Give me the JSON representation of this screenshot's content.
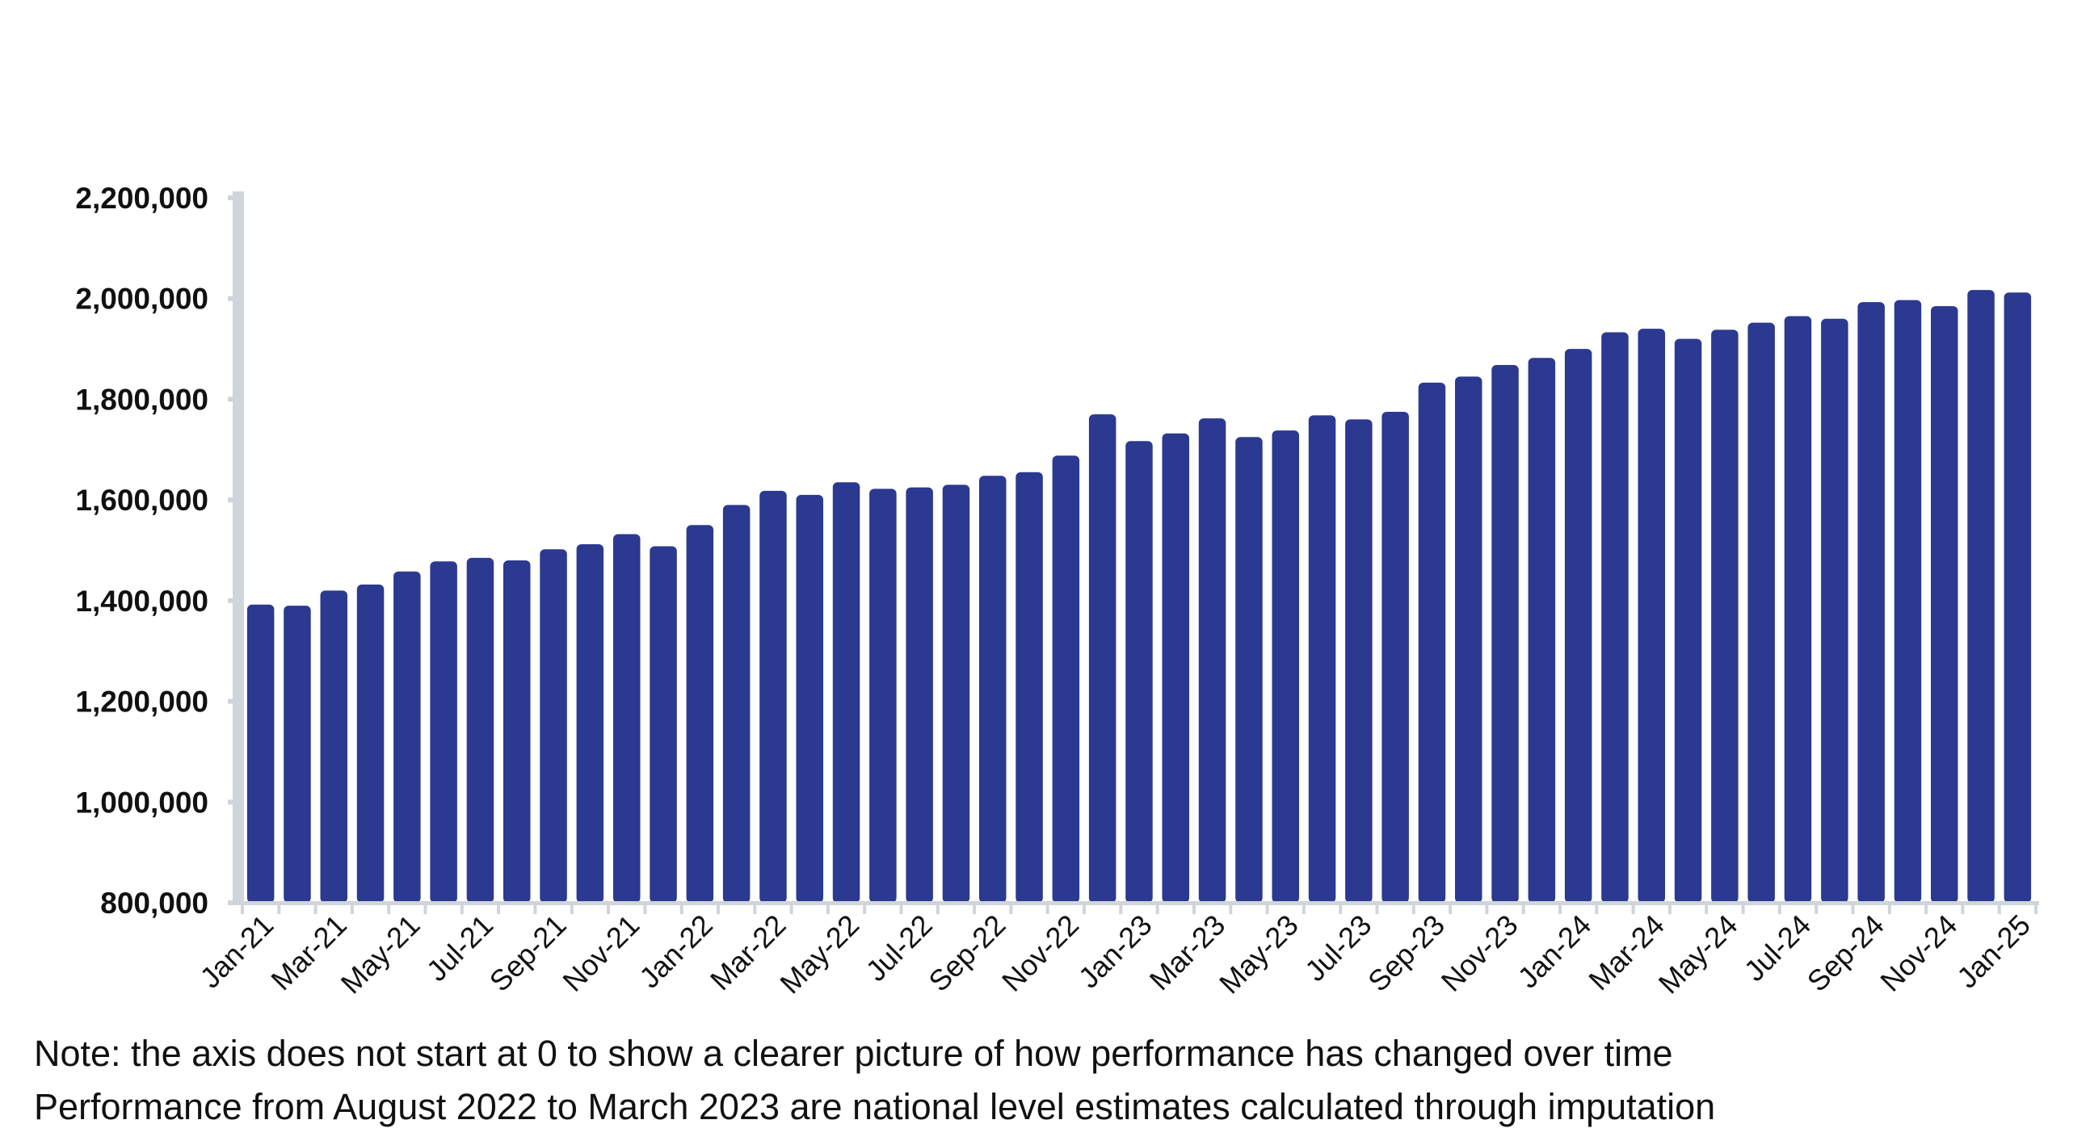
{
  "chart_data": {
    "type": "bar",
    "title": "",
    "xlabel": "",
    "ylabel": "",
    "ylim": [
      800000,
      2200000
    ],
    "yticks": [
      "800,000",
      "1,000,000",
      "1,200,000",
      "1,400,000",
      "1,600,000",
      "1,800,000",
      "2,000,000",
      "2,200,000"
    ],
    "grid": false,
    "bar_color": "#2b3990",
    "axis_color": "#cfd5da",
    "categories": [
      "Jan-21",
      "Feb-21",
      "Mar-21",
      "Apr-21",
      "May-21",
      "Jun-21",
      "Jul-21",
      "Aug-21",
      "Sep-21",
      "Oct-21",
      "Nov-21",
      "Dec-21",
      "Jan-22",
      "Feb-22",
      "Mar-22",
      "Apr-22",
      "May-22",
      "Jun-22",
      "Jul-22",
      "Aug-22",
      "Sep-22",
      "Oct-22",
      "Nov-22",
      "Dec-22",
      "Jan-23",
      "Feb-23",
      "Mar-23",
      "Apr-23",
      "May-23",
      "Jun-23",
      "Jul-23",
      "Aug-23",
      "Sep-23",
      "Oct-23",
      "Nov-23",
      "Dec-23",
      "Jan-24",
      "Feb-24",
      "Mar-24",
      "Apr-24",
      "May-24",
      "Jun-24",
      "Jul-24",
      "Aug-24",
      "Sep-24",
      "Oct-24",
      "Nov-24",
      "Dec-24",
      "Jan-25"
    ],
    "values": [
      1392000,
      1390000,
      1420000,
      1432000,
      1458000,
      1478000,
      1485000,
      1480000,
      1502000,
      1512000,
      1532000,
      1508000,
      1550000,
      1590000,
      1618000,
      1610000,
      1635000,
      1622000,
      1625000,
      1630000,
      1648000,
      1655000,
      1688000,
      1770000,
      1717000,
      1732000,
      1762000,
      1725000,
      1738000,
      1768000,
      1760000,
      1775000,
      1833000,
      1845000,
      1868000,
      1882000,
      1900000,
      1933000,
      1940000,
      1920000,
      1938000,
      1952000,
      1965000,
      1960000,
      1993000,
      1997000,
      1985000,
      2017000,
      2012000
    ]
  },
  "notes": {
    "line1": "Note: the axis does not start at 0 to show a clearer picture of how performance has changed over time",
    "line2": "Performance from August 2022 to March 2023 are national level estimates calculated through imputation"
  }
}
